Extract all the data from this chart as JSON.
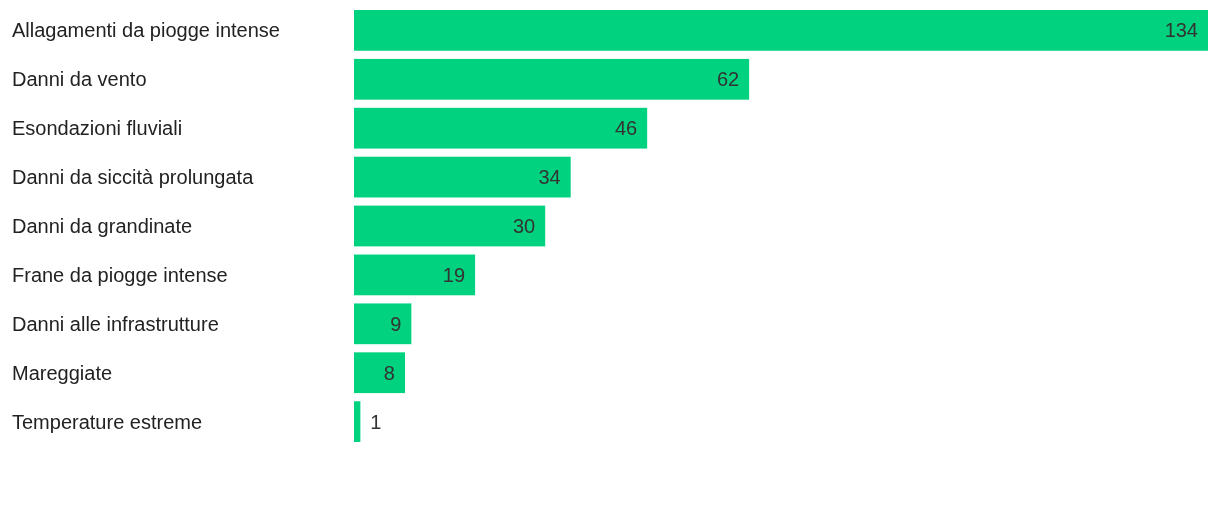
{
  "chart_data": {
    "type": "bar",
    "orientation": "horizontal",
    "data_labels": true,
    "color": "#00d27f",
    "categories": [
      "Allagamenti da piogge intense",
      "Danni da vento",
      "Esondazioni fluviali",
      "Danni da siccità prolungata",
      "Danni da grandinate",
      "Frane da piogge intense",
      "Danni alle infrastrutture",
      "Mareggiate",
      "Temperature estreme"
    ],
    "values": [
      134,
      62,
      46,
      34,
      30,
      19,
      9,
      8,
      1
    ]
  }
}
